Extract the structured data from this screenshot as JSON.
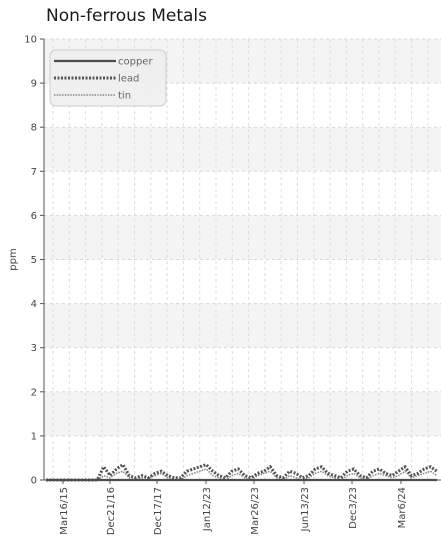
{
  "chart_data": {
    "type": "line",
    "title": "Non-ferrous Metals",
    "xlabel": "",
    "ylabel": "ppm",
    "ylim": [
      0,
      10
    ],
    "y_ticks": [
      "0",
      "1",
      "2",
      "3",
      "4",
      "5",
      "6",
      "7",
      "8",
      "9",
      "10"
    ],
    "x_tick_labels": [
      "Mar16/15",
      "Dec21/16",
      "Dec17/17",
      "Jan12/23",
      "Mar26/23",
      "Jun13/23",
      "Dec3/23",
      "Mar6/24"
    ],
    "grid": true,
    "legend_position": "top-left",
    "series": [
      {
        "name": "copper",
        "color": "#4d4d4d",
        "style": "solid",
        "values": [
          0,
          0,
          0,
          0,
          0,
          0,
          0,
          0,
          0,
          0,
          0,
          0,
          0,
          0,
          0,
          0,
          0,
          0,
          0,
          0,
          0,
          0,
          0,
          0,
          0,
          0,
          0,
          0,
          0,
          0,
          0,
          0,
          0,
          0,
          0,
          0,
          0,
          0,
          0,
          0,
          0,
          0,
          0,
          0,
          0,
          0,
          0,
          0,
          0,
          0,
          0,
          0,
          0,
          0,
          0,
          0,
          0,
          0,
          0,
          0,
          0,
          0
        ]
      },
      {
        "name": "lead",
        "color": "#555555",
        "style": "dotted-thick",
        "values": [
          0,
          0,
          0,
          0,
          0,
          0,
          0,
          0,
          0,
          0.3,
          0.1,
          0.25,
          0.35,
          0.1,
          0.05,
          0.1,
          0.05,
          0.15,
          0.2,
          0.1,
          0.05,
          0.05,
          0.2,
          0.25,
          0.3,
          0.35,
          0.2,
          0.1,
          0.05,
          0.2,
          0.25,
          0.1,
          0.05,
          0.15,
          0.2,
          0.3,
          0.1,
          0.05,
          0.2,
          0.15,
          0.05,
          0.1,
          0.25,
          0.3,
          0.15,
          0.1,
          0.05,
          0.2,
          0.25,
          0.1,
          0.05,
          0.2,
          0.25,
          0.15,
          0.1,
          0.2,
          0.3,
          0.1,
          0.15,
          0.25,
          0.3,
          0.2
        ]
      },
      {
        "name": "tin",
        "color": "#888888",
        "style": "dotted-thin",
        "values": [
          0,
          0,
          0,
          0,
          0,
          0,
          0,
          0,
          0,
          0.1,
          0.05,
          0.15,
          0.2,
          0.05,
          0,
          0.05,
          0.05,
          0.1,
          0.15,
          0.05,
          0,
          0,
          0.1,
          0.15,
          0.2,
          0.25,
          0.1,
          0.05,
          0,
          0.1,
          0.15,
          0.05,
          0,
          0.1,
          0.15,
          0.2,
          0.05,
          0,
          0.1,
          0.05,
          0,
          0.05,
          0.15,
          0.2,
          0.1,
          0.05,
          0,
          0.1,
          0.15,
          0.05,
          0,
          0.1,
          0.15,
          0.1,
          0.05,
          0.1,
          0.2,
          0.05,
          0.1,
          0.15,
          0.2,
          0.1
        ]
      }
    ]
  }
}
